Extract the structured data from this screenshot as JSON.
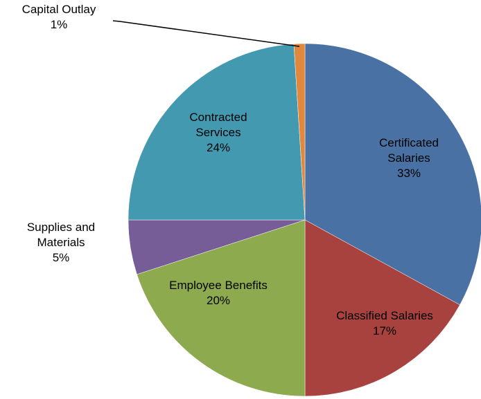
{
  "chart_data": {
    "type": "pie",
    "categories": [
      "Certificated Salaries",
      "Classified Salaries",
      "Employee Benefits",
      "Supplies and Materials",
      "Contracted Services",
      "Capital Outlay"
    ],
    "values": [
      33,
      17,
      20,
      5,
      24,
      1
    ],
    "value_labels": [
      "33%",
      "17%",
      "20%",
      "5%",
      "24%",
      "1%"
    ],
    "colors": [
      "#4a71a3",
      "#a8423f",
      "#8daa4e",
      "#765d97",
      "#4399b0",
      "#e0883b"
    ]
  }
}
